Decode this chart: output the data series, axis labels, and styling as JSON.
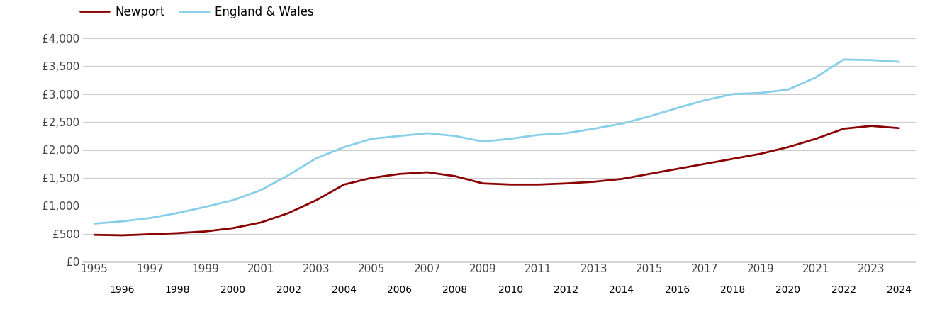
{
  "newport": {
    "years": [
      1995,
      1996,
      1997,
      1998,
      1999,
      2000,
      2001,
      2002,
      2003,
      2004,
      2005,
      2006,
      2007,
      2008,
      2009,
      2010,
      2011,
      2012,
      2013,
      2014,
      2015,
      2016,
      2017,
      2018,
      2019,
      2020,
      2021,
      2022,
      2023,
      2024
    ],
    "values": [
      480,
      470,
      490,
      510,
      540,
      600,
      700,
      870,
      1100,
      1380,
      1500,
      1570,
      1600,
      1530,
      1400,
      1380,
      1380,
      1400,
      1430,
      1480,
      1570,
      1660,
      1750,
      1840,
      1930,
      2050,
      2200,
      2380,
      2430,
      2390
    ]
  },
  "england_wales": {
    "years": [
      1995,
      1996,
      1997,
      1998,
      1999,
      2000,
      2001,
      2002,
      2003,
      2004,
      2005,
      2006,
      2007,
      2008,
      2009,
      2010,
      2011,
      2012,
      2013,
      2014,
      2015,
      2016,
      2017,
      2018,
      2019,
      2020,
      2021,
      2022,
      2023,
      2024
    ],
    "values": [
      680,
      720,
      780,
      870,
      980,
      1100,
      1280,
      1550,
      1850,
      2050,
      2200,
      2250,
      2300,
      2250,
      2150,
      2200,
      2270,
      2300,
      2380,
      2470,
      2600,
      2750,
      2890,
      3000,
      3020,
      3080,
      3300,
      3620,
      3610,
      3580
    ]
  },
  "newport_color": "#8B0000",
  "england_wales_color": "#87CEEB",
  "background_color": "#ffffff",
  "grid_color": "#cccccc",
  "ylim": [
    0,
    4000
  ],
  "yticks": [
    0,
    500,
    1000,
    1500,
    2000,
    2500,
    3000,
    3500,
    4000
  ],
  "ytick_labels": [
    "£0",
    "£500",
    "£1,000",
    "£1,500",
    "£2,000",
    "£2,500",
    "£3,000",
    "£3,500",
    "£4,000"
  ],
  "legend_newport": "Newport",
  "legend_ew": "England & Wales",
  "line_width": 2.0,
  "odd_years": [
    1995,
    1997,
    1999,
    2001,
    2003,
    2005,
    2007,
    2009,
    2011,
    2013,
    2015,
    2017,
    2019,
    2021,
    2023
  ],
  "even_years": [
    1996,
    1998,
    2000,
    2002,
    2004,
    2006,
    2008,
    2010,
    2012,
    2014,
    2016,
    2018,
    2020,
    2022,
    2024
  ]
}
